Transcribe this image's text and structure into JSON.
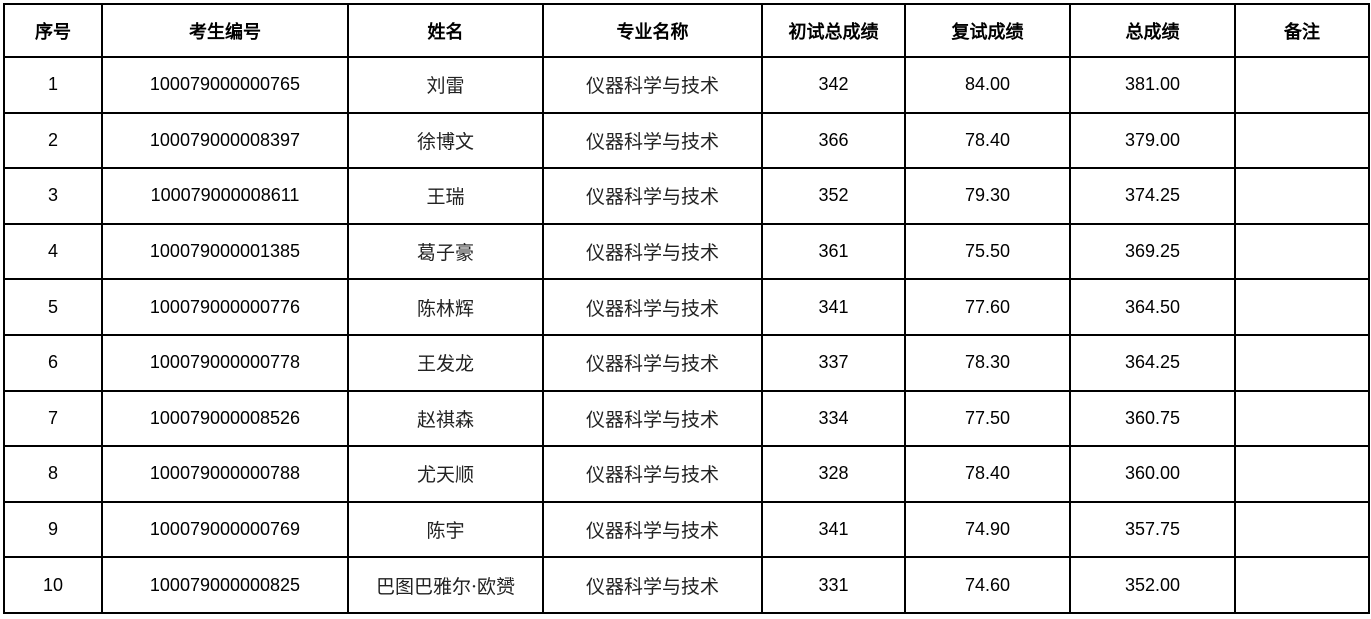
{
  "table": {
    "headers": [
      "序号",
      "考生编号",
      "姓名",
      "专业名称",
      "初试总成绩",
      "复试成绩",
      "总成绩",
      "备注"
    ],
    "rows": [
      [
        "1",
        "100079000000765",
        "刘雷",
        "仪器科学与技术",
        "342",
        "84.00",
        "381.00",
        ""
      ],
      [
        "2",
        "100079000008397",
        "徐博文",
        "仪器科学与技术",
        "366",
        "78.40",
        "379.00",
        ""
      ],
      [
        "3",
        "100079000008611",
        "王瑞",
        "仪器科学与技术",
        "352",
        "79.30",
        "374.25",
        ""
      ],
      [
        "4",
        "100079000001385",
        "葛子豪",
        "仪器科学与技术",
        "361",
        "75.50",
        "369.25",
        ""
      ],
      [
        "5",
        "100079000000776",
        "陈林辉",
        "仪器科学与技术",
        "341",
        "77.60",
        "364.50",
        ""
      ],
      [
        "6",
        "100079000000778",
        "王发龙",
        "仪器科学与技术",
        "337",
        "78.30",
        "364.25",
        ""
      ],
      [
        "7",
        "100079000008526",
        "赵祺森",
        "仪器科学与技术",
        "334",
        "77.50",
        "360.75",
        ""
      ],
      [
        "8",
        "100079000000788",
        "尤天顺",
        "仪器科学与技术",
        "328",
        "78.40",
        "360.00",
        ""
      ],
      [
        "9",
        "100079000000769",
        "陈宇",
        "仪器科学与技术",
        "341",
        "74.90",
        "357.75",
        ""
      ],
      [
        "10",
        "100079000000825",
        "巴图巴雅尔·欧赟",
        "仪器科学与技术",
        "331",
        "74.60",
        "352.00",
        ""
      ]
    ]
  }
}
